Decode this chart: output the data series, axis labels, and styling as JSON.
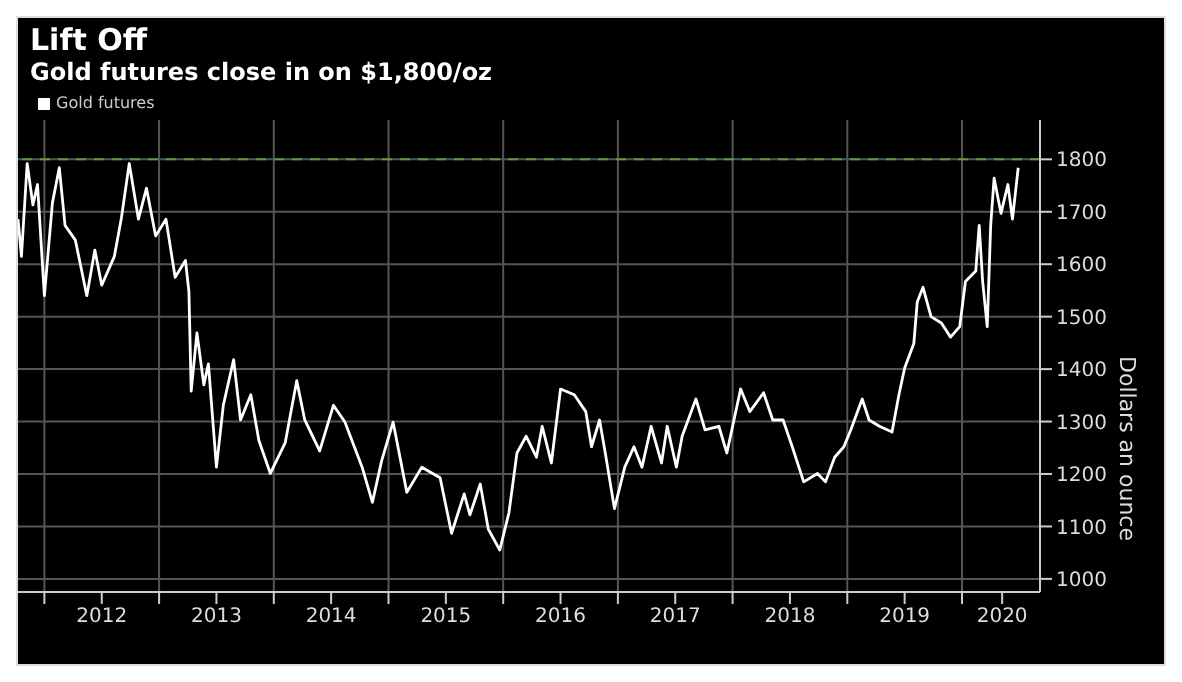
{
  "chart_data": {
    "type": "line",
    "title": "Lift Off",
    "subtitle": "Gold futures close in on $1,800/oz",
    "ylabel": "Dollars an ounce",
    "series": [
      {
        "name": "Gold futures",
        "color": "#ffffff",
        "x": [
          2011.77,
          2011.8,
          2011.85,
          2011.9,
          2011.94,
          2012.0,
          2012.07,
          2012.13,
          2012.18,
          2012.27,
          2012.37,
          2012.44,
          2012.5,
          2012.61,
          2012.67,
          2012.74,
          2012.82,
          2012.89,
          2012.97,
          2013.06,
          2013.14,
          2013.23,
          2013.26,
          2013.28,
          2013.33,
          2013.39,
          2013.43,
          2013.5,
          2013.56,
          2013.65,
          2013.71,
          2013.8,
          2013.87,
          2013.97,
          2014.1,
          2014.2,
          2014.27,
          2014.4,
          2014.52,
          2014.62,
          2014.77,
          2014.86,
          2014.94,
          2015.04,
          2015.16,
          2015.29,
          2015.45,
          2015.55,
          2015.66,
          2015.71,
          2015.8,
          2015.87,
          2015.97,
          2016.05,
          2016.12,
          2016.2,
          2016.29,
          2016.34,
          2016.42,
          2016.5,
          2016.62,
          2016.72,
          2016.77,
          2016.84,
          2016.89,
          2016.97,
          2017.06,
          2017.14,
          2017.21,
          2017.29,
          2017.38,
          2017.43,
          2017.51,
          2017.56,
          2017.68,
          2017.76,
          2017.88,
          2017.95,
          2018.07,
          2018.15,
          2018.27,
          2018.35,
          2018.44,
          2018.52,
          2018.62,
          2018.74,
          2018.81,
          2018.89,
          2018.97,
          2019.03,
          2019.13,
          2019.19,
          2019.28,
          2019.39,
          2019.45,
          2019.5,
          2019.58,
          2019.61,
          2019.66,
          2019.73,
          2019.82,
          2019.9,
          2019.98,
          2020.03,
          2020.12,
          2020.15,
          2020.18,
          2020.22,
          2020.25,
          2020.28,
          2020.34,
          2020.4,
          2020.44,
          2020.49
        ],
        "values": [
          1686,
          1615,
          1792,
          1713,
          1752,
          1540,
          1717,
          1784,
          1674,
          1646,
          1540,
          1627,
          1560,
          1615,
          1686,
          1792,
          1686,
          1745,
          1654,
          1686,
          1575,
          1607,
          1548,
          1358,
          1469,
          1370,
          1410,
          1213,
          1331,
          1418,
          1303,
          1351,
          1264,
          1201,
          1260,
          1378,
          1303,
          1244,
          1331,
          1299,
          1213,
          1146,
          1225,
          1299,
          1165,
          1213,
          1193,
          1087,
          1162,
          1122,
          1181,
          1095,
          1055,
          1126,
          1240,
          1272,
          1232,
          1291,
          1221,
          1362,
          1351,
          1319,
          1252,
          1303,
          1240,
          1134,
          1213,
          1252,
          1213,
          1291,
          1221,
          1291,
          1213,
          1272,
          1343,
          1284,
          1291,
          1240,
          1362,
          1319,
          1355,
          1303,
          1303,
          1252,
          1185,
          1201,
          1185,
          1232,
          1252,
          1284,
          1343,
          1303,
          1291,
          1280,
          1351,
          1402,
          1449,
          1528,
          1556,
          1500,
          1488,
          1461,
          1481,
          1567,
          1587,
          1674,
          1567,
          1481,
          1674,
          1764,
          1697,
          1752,
          1686,
          1784
        ]
      }
    ],
    "xlim": [
      2011.77,
      2020.68
    ],
    "xticks": [
      {
        "value": 2012,
        "label": null
      },
      {
        "value": 2012.5,
        "label": "2012"
      },
      {
        "value": 2013,
        "label": null
      },
      {
        "value": 2013.5,
        "label": "2013"
      },
      {
        "value": 2014,
        "label": null
      },
      {
        "value": 2014.5,
        "label": "2014"
      },
      {
        "value": 2015,
        "label": null
      },
      {
        "value": 2015.5,
        "label": "2015"
      },
      {
        "value": 2016,
        "label": null
      },
      {
        "value": 2016.5,
        "label": "2016"
      },
      {
        "value": 2017,
        "label": null
      },
      {
        "value": 2017.5,
        "label": "2017"
      },
      {
        "value": 2018,
        "label": null
      },
      {
        "value": 2018.5,
        "label": "2018"
      },
      {
        "value": 2019,
        "label": null
      },
      {
        "value": 2019.5,
        "label": "2019"
      },
      {
        "value": 2020,
        "label": null
      },
      {
        "value": 2020.35,
        "label": "2020"
      }
    ],
    "ylim": [
      975,
      1875
    ],
    "yticks": [
      1000,
      1100,
      1200,
      1300,
      1400,
      1500,
      1600,
      1700,
      1800
    ],
    "ref_lines": [
      {
        "axis": "y",
        "value": 1800,
        "label": null,
        "color": "#5f9a3c",
        "line_style": "dashed"
      }
    ],
    "grid": true,
    "legend": "top left"
  }
}
